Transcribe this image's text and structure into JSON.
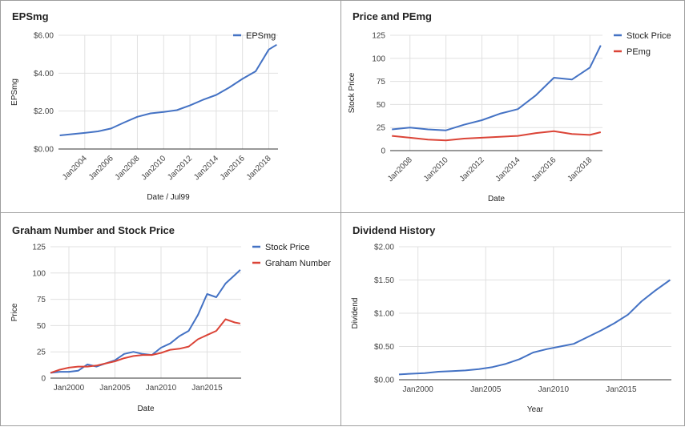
{
  "chart_data": [
    {
      "type": "line",
      "title": "EPSmg",
      "xlabel": "Date / Jul99",
      "ylabel": "EPSmg",
      "xticks": [
        "Jan2004",
        "Jan2006",
        "Jan2008",
        "Jan2010",
        "Jan2012",
        "Jan2014",
        "Jan2016",
        "Jan2018"
      ],
      "xtick_years": [
        2004,
        2006,
        2008,
        2010,
        2012,
        2014,
        2016,
        2018
      ],
      "xlim": [
        2002.0,
        2018.7
      ],
      "yticks": [
        "$0.00",
        "$2.00",
        "$4.00",
        "$6.00"
      ],
      "ytick_values": [
        0,
        2,
        4,
        6
      ],
      "ylim": [
        0,
        6
      ],
      "grid": true,
      "legend": "top-right",
      "series": [
        {
          "name": "EPSmg",
          "color": "#4472c4",
          "x": [
            2002.1,
            2003,
            2004,
            2005,
            2006,
            2007,
            2008,
            2009,
            2010,
            2011,
            2012,
            2013,
            2014,
            2015,
            2016,
            2017,
            2018,
            2018.6
          ],
          "y": [
            0.72,
            0.78,
            0.85,
            0.93,
            1.08,
            1.4,
            1.7,
            1.88,
            1.95,
            2.05,
            2.3,
            2.6,
            2.85,
            3.25,
            3.7,
            4.1,
            5.25,
            5.5
          ]
        }
      ]
    },
    {
      "type": "line",
      "title": "Price and PEmg",
      "xlabel": "Date",
      "ylabel": "Stock Price",
      "xticks": [
        "Jan2008",
        "Jan2010",
        "Jan2012",
        "Jan2014",
        "Jan2016",
        "Jan2018"
      ],
      "xtick_years": [
        2008,
        2010,
        2012,
        2014,
        2016,
        2018
      ],
      "xlim": [
        2006.9,
        2018.7
      ],
      "yticks": [
        "0",
        "25",
        "50",
        "75",
        "100",
        "125"
      ],
      "ytick_values": [
        0,
        25,
        50,
        75,
        100,
        125
      ],
      "ylim": [
        0,
        125
      ],
      "grid": true,
      "legend": "top-right",
      "series": [
        {
          "name": "Stock Price",
          "color": "#4472c4",
          "x": [
            2007,
            2008,
            2009,
            2010,
            2011,
            2012,
            2013,
            2014,
            2015,
            2016,
            2017,
            2018,
            2018.6
          ],
          "y": [
            23,
            25,
            23,
            22,
            28,
            33,
            40,
            45,
            60,
            79,
            77,
            90,
            114
          ]
        },
        {
          "name": "PEmg",
          "color": "#db4437",
          "x": [
            2007,
            2008,
            2009,
            2010,
            2011,
            2012,
            2013,
            2014,
            2015,
            2016,
            2017,
            2018,
            2018.6
          ],
          "y": [
            16,
            14,
            12,
            11,
            13,
            14,
            15,
            16,
            19,
            21,
            18,
            17,
            20
          ]
        }
      ]
    },
    {
      "type": "line",
      "title": "Graham Number and Stock Price",
      "xlabel": "Date",
      "ylabel": "Price",
      "xticks": [
        "Jan2000",
        "Jan2005",
        "Jan2010",
        "Jan2015"
      ],
      "xtick_years": [
        2000,
        2005,
        2010,
        2015
      ],
      "xlim": [
        1998.0,
        2018.7
      ],
      "yticks": [
        "0",
        "25",
        "50",
        "75",
        "100",
        "125"
      ],
      "ytick_values": [
        0,
        25,
        50,
        75,
        100,
        125
      ],
      "ylim": [
        0,
        125
      ],
      "grid": true,
      "legend": "top-right",
      "series": [
        {
          "name": "Stock Price",
          "color": "#4472c4",
          "x": [
            1998,
            1999,
            2000,
            2001,
            2002,
            2003,
            2004,
            2005,
            2006,
            2007,
            2008,
            2009,
            2010,
            2011,
            2012,
            2013,
            2014,
            2015,
            2016,
            2017,
            2018,
            2018.6
          ],
          "y": [
            5,
            6,
            6,
            7,
            13,
            11,
            14,
            17,
            23,
            25,
            23,
            22,
            29,
            33,
            40,
            45,
            60,
            80,
            77,
            90,
            98,
            103
          ]
        },
        {
          "name": "Graham Number",
          "color": "#db4437",
          "x": [
            1998,
            1999,
            2000,
            2001,
            2002,
            2003,
            2004,
            2005,
            2006,
            2007,
            2008,
            2009,
            2010,
            2011,
            2012,
            2013,
            2014,
            2015,
            2016,
            2017,
            2018,
            2018.6
          ],
          "y": [
            5,
            8,
            10,
            11,
            11,
            12,
            14,
            16,
            19,
            21,
            22,
            22,
            24,
            27,
            28,
            30,
            37,
            41,
            45,
            56,
            53,
            52
          ]
        }
      ]
    },
    {
      "type": "line",
      "title": "Dividend History",
      "xlabel": "Year",
      "ylabel": "Dividend",
      "xticks": [
        "Jan2000",
        "Jan2005",
        "Jan2010",
        "Jan2015"
      ],
      "xtick_years": [
        2000,
        2005,
        2010,
        2015
      ],
      "xlim": [
        1998.6,
        2018.7
      ],
      "yticks": [
        "$0.00",
        "$0.50",
        "$1.00",
        "$1.50",
        "$2.00"
      ],
      "ytick_values": [
        0,
        0.5,
        1,
        1.5,
        2
      ],
      "ylim": [
        0,
        2
      ],
      "grid": true,
      "legend": "none",
      "series": [
        {
          "name": "",
          "color": "#4472c4",
          "x": [
            1998.6,
            1999.5,
            2000.5,
            2001.5,
            2002.5,
            2003.5,
            2004.5,
            2005.5,
            2006.5,
            2007.5,
            2008.5,
            2009.5,
            2010.5,
            2011.5,
            2012.5,
            2013.5,
            2014.5,
            2015.5,
            2016.5,
            2017.5,
            2018.6
          ],
          "y": [
            0.08,
            0.09,
            0.1,
            0.12,
            0.13,
            0.14,
            0.16,
            0.19,
            0.24,
            0.31,
            0.41,
            0.46,
            0.5,
            0.54,
            0.64,
            0.74,
            0.85,
            0.98,
            1.18,
            1.34,
            1.5
          ]
        }
      ]
    }
  ]
}
